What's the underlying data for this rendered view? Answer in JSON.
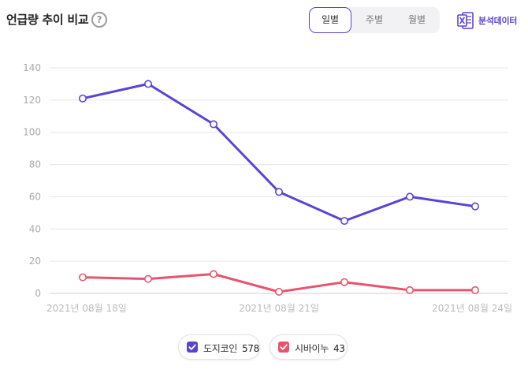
{
  "header": {
    "title": "언급량 추이 비교",
    "help_icon": "question-circle-icon",
    "tabs": [
      {
        "label": "일별",
        "active": true
      },
      {
        "label": "주별",
        "active": false
      },
      {
        "label": "월별",
        "active": false
      }
    ],
    "analysis_label": "분석데이터",
    "analysis_icon": "excel-icon"
  },
  "legend": [
    {
      "label": "도지코인",
      "count": "578",
      "color": "#5a44d6",
      "checked": true
    },
    {
      "label": "시바이누",
      "count": "43",
      "color": "#e8546e",
      "checked": true
    }
  ],
  "chart_data": {
    "type": "line",
    "x": [
      "2021-08-18",
      "2021-08-19",
      "2021-08-20",
      "2021-08-21",
      "2021-08-22",
      "2021-08-23",
      "2021-08-24"
    ],
    "x_tick_labels": [
      "2021년 08월 18일",
      "2021년 08월 21일",
      "2021년 08월 24일"
    ],
    "y_ticks": [
      0,
      20,
      40,
      60,
      80,
      100,
      120,
      140
    ],
    "ylim": [
      0,
      140
    ],
    "grid": true,
    "legend_position": "bottom",
    "series": [
      {
        "name": "도지코인",
        "color": "#5a44d6",
        "values": [
          121,
          130,
          105,
          63,
          45,
          60,
          54
        ]
      },
      {
        "name": "시바이누",
        "color": "#e8546e",
        "values": [
          10,
          9,
          12,
          1,
          7,
          2,
          2
        ]
      }
    ]
  }
}
